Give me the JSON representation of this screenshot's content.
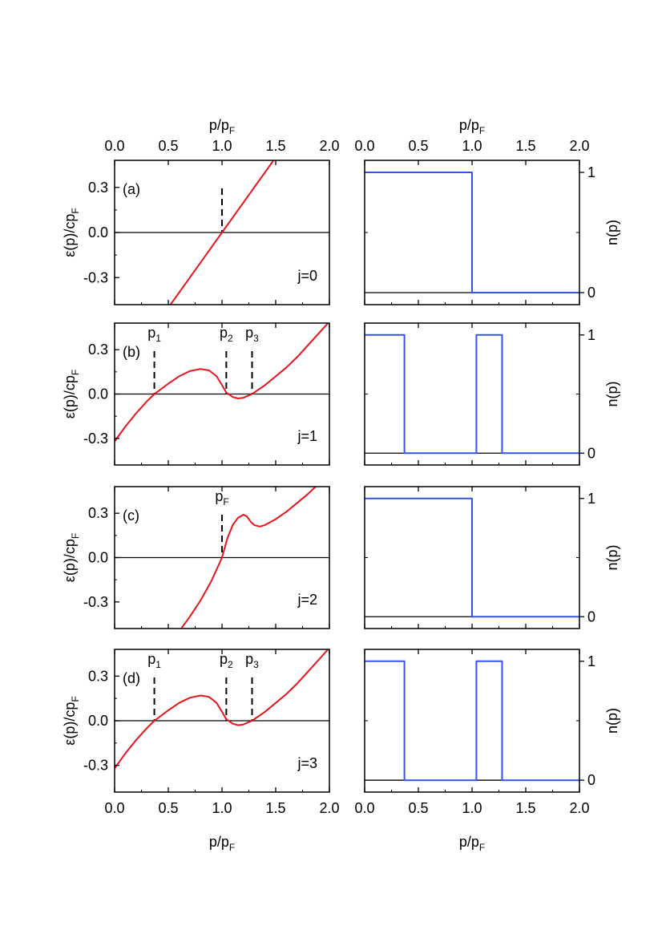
{
  "chart_data": [
    {
      "type": "line",
      "panel": "(a)",
      "note": "j=0",
      "xlabel_top": "p/p_F",
      "ylabel": "ε(p)/cp_F",
      "xlim": [
        0,
        2
      ],
      "ylim": [
        -0.48,
        0.48
      ],
      "xticks": [
        "0.0",
        "0.5",
        "1.0",
        "1.5",
        "2.0"
      ],
      "yticks": [
        "-0.3",
        "0.0",
        "0.3"
      ],
      "series": [
        {
          "x": [
            0.5,
            1.0,
            1.5
          ],
          "y": [
            -0.5,
            0,
            0.5
          ]
        }
      ],
      "dashed_x": [
        1.0
      ],
      "dashed_labels": []
    },
    {
      "type": "line",
      "panel": "(b)",
      "note": "j=1",
      "ylabel": "ε(p)/cp_F",
      "xlim": [
        0,
        2
      ],
      "ylim": [
        -0.48,
        0.48
      ],
      "yticks": [
        "-0.3",
        "0.0",
        "0.3"
      ],
      "series": [
        {
          "x": [
            0,
            0.1,
            0.2,
            0.3,
            0.37,
            0.5,
            0.6,
            0.7,
            0.8,
            0.88,
            0.95,
            1.0,
            1.04,
            1.1,
            1.15,
            1.2,
            1.28,
            1.4,
            1.5,
            1.6,
            1.7,
            1.8,
            1.9,
            2.0
          ],
          "y": [
            -0.32,
            -0.22,
            -0.13,
            -0.05,
            0,
            0.07,
            0.12,
            0.155,
            0.17,
            0.16,
            0.12,
            0.06,
            0.01,
            -0.02,
            -0.03,
            -0.025,
            0,
            0.06,
            0.12,
            0.18,
            0.25,
            0.33,
            0.41,
            0.49
          ]
        }
      ],
      "dashed_x": [
        0.37,
        1.04,
        1.28
      ],
      "dashed_labels": [
        "p",
        "p",
        "p"
      ],
      "dashed_subs": [
        "1",
        "2",
        "3"
      ]
    },
    {
      "type": "line",
      "panel": "(c)",
      "note": "j=2",
      "ylabel": "ε(p)/cp_F",
      "xlim": [
        0,
        2
      ],
      "ylim": [
        -0.48,
        0.48
      ],
      "yticks": [
        "-0.3",
        "0.0",
        "0.3"
      ],
      "series": [
        {
          "x": [
            0.6,
            0.7,
            0.8,
            0.9,
            1.0,
            1.05,
            1.1,
            1.15,
            1.2,
            1.23,
            1.27,
            1.3,
            1.35,
            1.4,
            1.5,
            1.6,
            1.7,
            1.8,
            1.9
          ],
          "y": [
            -0.5,
            -0.4,
            -0.29,
            -0.16,
            0,
            0.13,
            0.22,
            0.27,
            0.29,
            0.28,
            0.24,
            0.22,
            0.21,
            0.22,
            0.26,
            0.31,
            0.37,
            0.43,
            0.5
          ]
        }
      ],
      "dashed_x": [
        1.0
      ],
      "dashed_labels": [
        "p"
      ],
      "dashed_subs": [
        "F"
      ]
    },
    {
      "type": "line",
      "panel": "(d)",
      "note": "j=3",
      "ylabel": "ε(p)/cp_F",
      "xlabel": "p/p_F",
      "xlim": [
        0,
        2
      ],
      "ylim": [
        -0.48,
        0.48
      ],
      "xticks": [
        "0.0",
        "0.5",
        "1.0",
        "1.5",
        "2.0"
      ],
      "yticks": [
        "-0.3",
        "0.0",
        "0.3"
      ],
      "series": [
        {
          "x": [
            0,
            0.1,
            0.2,
            0.3,
            0.37,
            0.5,
            0.6,
            0.7,
            0.8,
            0.88,
            0.95,
            1.0,
            1.04,
            1.1,
            1.15,
            1.2,
            1.28,
            1.4,
            1.5,
            1.6,
            1.7,
            1.8,
            1.9,
            2.0
          ],
          "y": [
            -0.32,
            -0.22,
            -0.13,
            -0.05,
            0,
            0.07,
            0.12,
            0.155,
            0.17,
            0.16,
            0.12,
            0.06,
            0.01,
            -0.02,
            -0.03,
            -0.025,
            0,
            0.06,
            0.12,
            0.18,
            0.25,
            0.33,
            0.41,
            0.49
          ]
        }
      ],
      "dashed_x": [
        0.37,
        1.04,
        1.28
      ],
      "dashed_labels": [
        "p",
        "p",
        "p"
      ],
      "dashed_subs": [
        "1",
        "2",
        "3"
      ]
    },
    {
      "type": "line",
      "panel": "n-a",
      "xlabel_top": "p/p_F",
      "ylabel": "n(p)",
      "xlim": [
        0,
        2
      ],
      "ylim": [
        -0.1,
        1.1
      ],
      "xticks": [
        "0.0",
        "0.5",
        "1.0",
        "1.5",
        "2.0"
      ],
      "yticks": [
        "0",
        "1"
      ],
      "series": [
        {
          "x": [
            0,
            1.0,
            1.0,
            2.0
          ],
          "y": [
            1,
            1,
            0,
            0
          ]
        }
      ]
    },
    {
      "type": "line",
      "panel": "n-b",
      "ylabel": "n(p)",
      "xlim": [
        0,
        2
      ],
      "ylim": [
        -0.1,
        1.1
      ],
      "yticks": [
        "0",
        "1"
      ],
      "series": [
        {
          "x": [
            0,
            0.37,
            0.37,
            1.04,
            1.04,
            1.28,
            1.28,
            2.0
          ],
          "y": [
            1,
            1,
            0,
            0,
            1,
            1,
            0,
            0
          ]
        }
      ]
    },
    {
      "type": "line",
      "panel": "n-c",
      "ylabel": "n(p)",
      "xlim": [
        0,
        2
      ],
      "ylim": [
        -0.1,
        1.1
      ],
      "yticks": [
        "0",
        "1"
      ],
      "series": [
        {
          "x": [
            0,
            1.0,
            1.0,
            2.0
          ],
          "y": [
            1,
            1,
            0,
            0
          ]
        }
      ]
    },
    {
      "type": "line",
      "panel": "n-d",
      "ylabel": "n(p)",
      "xlabel": "p/p_F",
      "xlim": [
        0,
        2
      ],
      "ylim": [
        -0.1,
        1.1
      ],
      "xticks": [
        "0.0",
        "0.5",
        "1.0",
        "1.5",
        "2.0"
      ],
      "yticks": [
        "0",
        "1"
      ],
      "series": [
        {
          "x": [
            0,
            0.37,
            0.37,
            1.04,
            1.04,
            1.28,
            1.28,
            2.0
          ],
          "y": [
            1,
            1,
            0,
            0,
            1,
            1,
            0,
            0
          ]
        }
      ]
    }
  ],
  "colors": {
    "energy": "#e8141c",
    "occupation": "#3654e8",
    "axis": "#000000"
  }
}
